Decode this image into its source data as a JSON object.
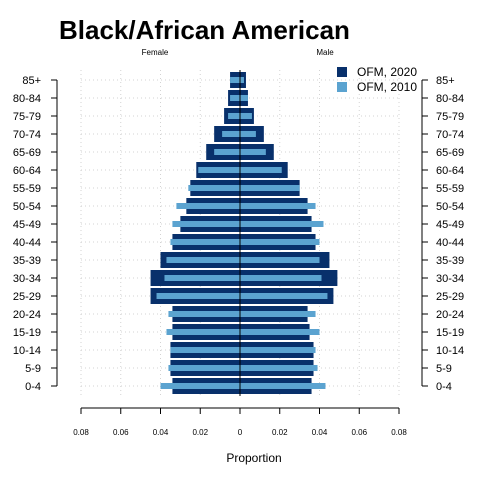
{
  "chart_data": {
    "type": "bar",
    "title": "Black/African American",
    "left_label": "Female",
    "right_label": "Male",
    "xlabel": "Proportion",
    "x_ticks": [
      "0.08",
      "0.06",
      "0.04",
      "0.02",
      "0",
      "0.02",
      "0.04",
      "0.06",
      "0.08"
    ],
    "xlim": [
      -0.08,
      0.08
    ],
    "categories": [
      "0-4",
      "5-9",
      "10-14",
      "15-19",
      "20-24",
      "25-29",
      "30-34",
      "35-39",
      "40-44",
      "45-49",
      "50-54",
      "55-59",
      "60-64",
      "65-69",
      "70-74",
      "75-79",
      "80-84",
      "85+"
    ],
    "legend_position": "top-right",
    "grid": true,
    "series": [
      {
        "name": "OFM, 2020",
        "color": "#08306b",
        "female": [
          0.034,
          0.035,
          0.035,
          0.034,
          0.034,
          0.045,
          0.045,
          0.04,
          0.034,
          0.03,
          0.027,
          0.025,
          0.022,
          0.017,
          0.013,
          0.008,
          0.006,
          0.005
        ],
        "male": [
          0.036,
          0.037,
          0.037,
          0.035,
          0.034,
          0.047,
          0.049,
          0.045,
          0.038,
          0.036,
          0.034,
          0.03,
          0.024,
          0.017,
          0.012,
          0.007,
          0.004,
          0.003
        ]
      },
      {
        "name": "OFM, 2010",
        "color": "#5ba3d0",
        "female": [
          0.04,
          0.036,
          0.035,
          0.037,
          0.036,
          0.042,
          0.038,
          0.037,
          0.035,
          0.034,
          0.032,
          0.026,
          0.021,
          0.013,
          0.009,
          0.006,
          0.005,
          0.005
        ],
        "male": [
          0.043,
          0.039,
          0.038,
          0.04,
          0.038,
          0.044,
          0.041,
          0.04,
          0.04,
          0.042,
          0.038,
          0.03,
          0.021,
          0.013,
          0.008,
          0.006,
          0.004,
          0.002
        ]
      }
    ]
  }
}
